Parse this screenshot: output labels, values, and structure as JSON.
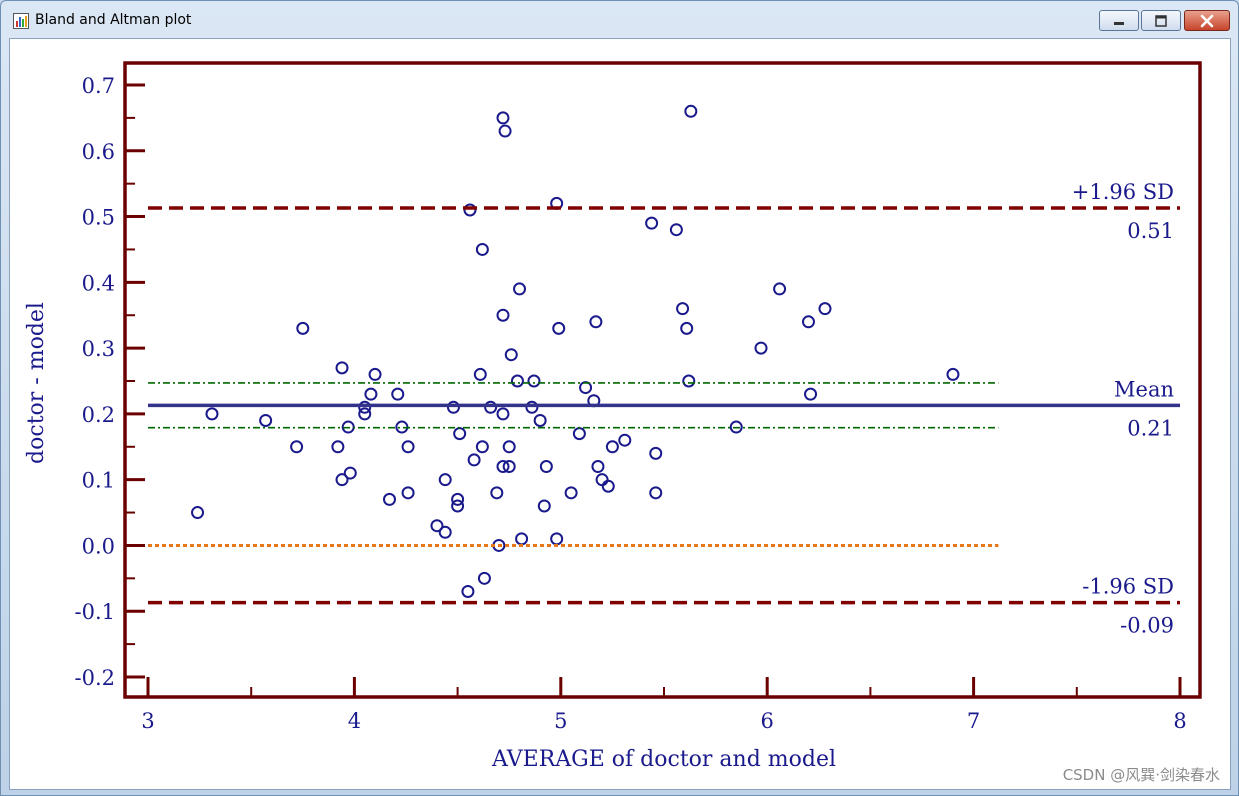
{
  "window": {
    "title": "Bland and Altman plot",
    "icon": "bar-chart-icon",
    "minimize_icon": "minimize-icon",
    "maximize_icon": "maximize-icon",
    "close_icon": "close-icon"
  },
  "watermark": "CSDN @风巽·剑染春水",
  "chart_data": {
    "type": "scatter",
    "title": "",
    "xlabel": "AVERAGE of doctor and model",
    "ylabel": "doctor - model",
    "xlim": [
      3,
      8
    ],
    "ylim": [
      -0.2,
      0.7
    ],
    "x_ticks": [
      "3",
      "4",
      "5",
      "6",
      "7",
      "8"
    ],
    "y_ticks": [
      "-0.2",
      "-0.1",
      "0.0",
      "0.1",
      "0.2",
      "0.3",
      "0.4",
      "0.5",
      "0.6",
      "0.7"
    ],
    "grid": false,
    "colors": {
      "frame": "#6b0000",
      "points": "#1a1a8c",
      "mean_line": "#33338c",
      "loa_line": "#800000",
      "ci_line": "#006600",
      "zero_line": "#e67819",
      "text": "#1a1a8c"
    },
    "lines": {
      "upper_loa": {
        "value": 0.513,
        "label": "+1.96 SD",
        "value_label": "0.51"
      },
      "mean": {
        "value": 0.213,
        "label": "Mean",
        "value_label": "0.21"
      },
      "lower_loa": {
        "value": -0.087,
        "label": "-1.96 SD",
        "value_label": "-0.09"
      },
      "mean_ci_upper": {
        "value": 0.247,
        "x_range": [
          3,
          7.12
        ]
      },
      "mean_ci_lower": {
        "value": 0.179,
        "x_range": [
          3,
          7.12
        ]
      },
      "zero": {
        "value": 0.0,
        "x_range": [
          3,
          7.12
        ]
      }
    },
    "points": [
      [
        3.24,
        0.05
      ],
      [
        3.31,
        0.2
      ],
      [
        3.57,
        0.19
      ],
      [
        3.72,
        0.15
      ],
      [
        3.75,
        0.33
      ],
      [
        3.92,
        0.15
      ],
      [
        3.94,
        0.27
      ],
      [
        3.94,
        0.1
      ],
      [
        3.97,
        0.18
      ],
      [
        3.98,
        0.11
      ],
      [
        4.05,
        0.21
      ],
      [
        4.05,
        0.2
      ],
      [
        4.08,
        0.23
      ],
      [
        4.1,
        0.26
      ],
      [
        4.17,
        0.07
      ],
      [
        4.21,
        0.23
      ],
      [
        4.23,
        0.18
      ],
      [
        4.26,
        0.15
      ],
      [
        4.26,
        0.08
      ],
      [
        4.4,
        0.03
      ],
      [
        4.44,
        0.1
      ],
      [
        4.44,
        0.02
      ],
      [
        4.48,
        0.21
      ],
      [
        4.5,
        0.07
      ],
      [
        4.5,
        0.06
      ],
      [
        4.51,
        0.17
      ],
      [
        4.55,
        -0.07
      ],
      [
        4.56,
        0.51
      ],
      [
        4.58,
        0.13
      ],
      [
        4.61,
        0.26
      ],
      [
        4.62,
        0.15
      ],
      [
        4.62,
        0.45
      ],
      [
        4.63,
        -0.05
      ],
      [
        4.66,
        0.21
      ],
      [
        4.69,
        0.08
      ],
      [
        4.7,
        0.0
      ],
      [
        4.72,
        0.65
      ],
      [
        4.72,
        0.2
      ],
      [
        4.72,
        0.35
      ],
      [
        4.72,
        0.12
      ],
      [
        4.73,
        0.63
      ],
      [
        4.75,
        0.12
      ],
      [
        4.75,
        0.15
      ],
      [
        4.76,
        0.29
      ],
      [
        4.79,
        0.25
      ],
      [
        4.8,
        0.39
      ],
      [
        4.81,
        0.01
      ],
      [
        4.86,
        0.21
      ],
      [
        4.87,
        0.25
      ],
      [
        4.9,
        0.19
      ],
      [
        4.92,
        0.06
      ],
      [
        4.93,
        0.12
      ],
      [
        4.98,
        0.52
      ],
      [
        4.98,
        0.01
      ],
      [
        4.99,
        0.33
      ],
      [
        5.05,
        0.08
      ],
      [
        5.09,
        0.17
      ],
      [
        5.12,
        0.24
      ],
      [
        5.16,
        0.22
      ],
      [
        5.17,
        0.34
      ],
      [
        5.18,
        0.12
      ],
      [
        5.2,
        0.1
      ],
      [
        5.23,
        0.09
      ],
      [
        5.25,
        0.15
      ],
      [
        5.31,
        0.16
      ],
      [
        5.44,
        0.49
      ],
      [
        5.46,
        0.14
      ],
      [
        5.46,
        0.08
      ],
      [
        5.56,
        0.48
      ],
      [
        5.59,
        0.36
      ],
      [
        5.61,
        0.33
      ],
      [
        5.62,
        0.25
      ],
      [
        5.63,
        0.66
      ],
      [
        5.85,
        0.18
      ],
      [
        5.97,
        0.3
      ],
      [
        6.06,
        0.39
      ],
      [
        6.2,
        0.34
      ],
      [
        6.21,
        0.23
      ],
      [
        6.28,
        0.36
      ],
      [
        6.9,
        0.26
      ]
    ]
  }
}
